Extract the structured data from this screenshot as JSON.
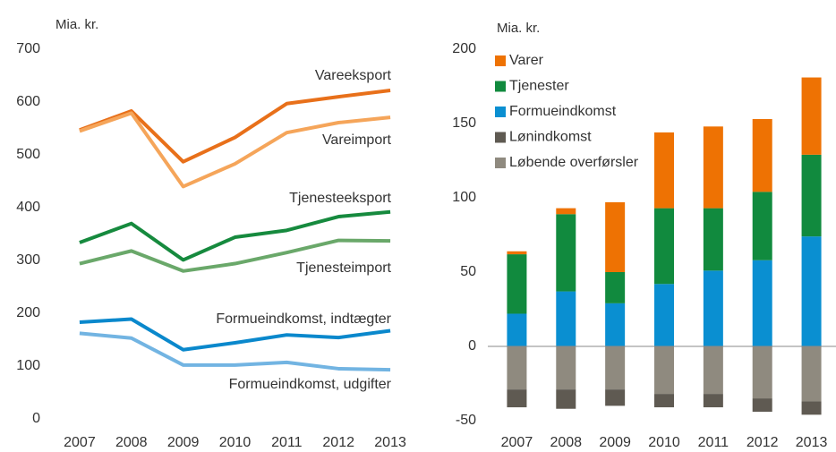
{
  "chart_data": [
    {
      "type": "line",
      "y_label": "Mia. kr.",
      "categories": [
        "2007",
        "2008",
        "2009",
        "2010",
        "2011",
        "2012",
        "2013"
      ],
      "ylim": [
        0,
        700
      ],
      "yticks": [
        0,
        100,
        200,
        300,
        400,
        500,
        600,
        700
      ],
      "series": [
        {
          "name": "Vareeksport",
          "color": "#e8701a",
          "values": [
            547,
            583,
            487,
            533,
            597,
            610,
            622
          ]
        },
        {
          "name": "Vareimport",
          "color": "#f5a55a",
          "values": [
            545,
            579,
            440,
            483,
            542,
            561,
            571
          ]
        },
        {
          "name": "Tjenesteeksport",
          "color": "#168a3e",
          "values": [
            334,
            370,
            301,
            344,
            357,
            383,
            392
          ]
        },
        {
          "name": "Tjenesteimport",
          "color": "#6aa86a",
          "values": [
            294,
            318,
            280,
            294,
            315,
            338,
            337
          ]
        },
        {
          "name": "Formueindkomst, indtægter",
          "color": "#0a88cc",
          "values": [
            183,
            189,
            131,
            144,
            159,
            154,
            167
          ]
        },
        {
          "name": "Formueindkomst, udgifter",
          "color": "#72b4e2",
          "values": [
            162,
            153,
            102,
            102,
            107,
            95,
            93
          ]
        }
      ]
    },
    {
      "type": "stacked_bar",
      "y_label": "Mia. kr.",
      "categories": [
        "2007",
        "2008",
        "2009",
        "2010",
        "2011",
        "2012",
        "2013"
      ],
      "ylim": [
        -50,
        200
      ],
      "yticks": [
        -50,
        0,
        50,
        100,
        150,
        200
      ],
      "series": [
        {
          "name": "Varer",
          "color": "#ee7203",
          "values": [
            2,
            4,
            47,
            51,
            55,
            49,
            52
          ]
        },
        {
          "name": "Tjenester",
          "color": "#118a3e",
          "values": [
            40,
            52,
            21,
            51,
            42,
            46,
            55
          ]
        },
        {
          "name": "Formueindkomst",
          "color": "#0a8fd1",
          "values": [
            22,
            37,
            29,
            42,
            51,
            58,
            74
          ]
        },
        {
          "name": "Lønindkomst",
          "color": "#5f5a52",
          "values": [
            -12,
            -13,
            -11,
            -9,
            -9,
            -9,
            -9
          ]
        },
        {
          "name": "Løbende overførsler",
          "color": "#8f8a7f",
          "values": [
            -29,
            -29,
            -29,
            -32,
            -32,
            -35,
            -37
          ]
        }
      ]
    }
  ]
}
